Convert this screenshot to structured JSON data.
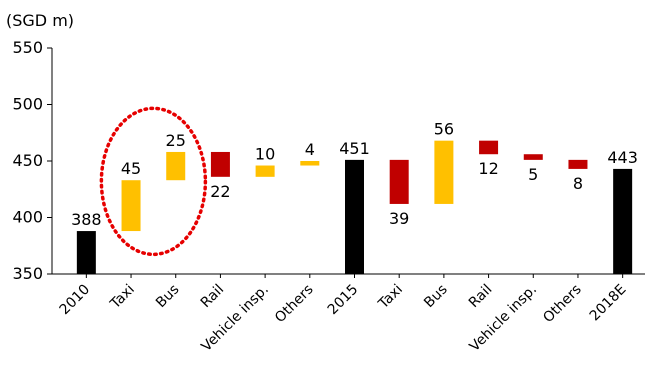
{
  "chart_data": {
    "type": "bar",
    "subtype": "waterfall",
    "unit_label": "(SGD m)",
    "yticks": [
      "350",
      "400",
      "450",
      "500",
      "550"
    ],
    "ylim": [
      350,
      550
    ],
    "grid": false,
    "legend": "none",
    "highlight": {
      "shape": "dotted-circle",
      "color": "#e60000",
      "categories": [
        "Taxi",
        "Bus"
      ],
      "segment": 1
    },
    "colors": {
      "total": "#000000",
      "increase": "#ffc000",
      "decrease": "#c00000",
      "highlight": "#e60000"
    },
    "bars": [
      {
        "category": "2010",
        "kind": "total",
        "base": 350,
        "top": 388,
        "label": "388",
        "label_pos": "above"
      },
      {
        "category": "Taxi",
        "kind": "increase",
        "base": 388,
        "top": 433,
        "label": "45",
        "label_pos": "above"
      },
      {
        "category": "Bus",
        "kind": "increase",
        "base": 433,
        "top": 458,
        "label": "25",
        "label_pos": "above"
      },
      {
        "category": "Rail",
        "kind": "decrease",
        "base": 436,
        "top": 458,
        "label": "22",
        "label_pos": "below"
      },
      {
        "category": "Vehicle insp.",
        "kind": "increase",
        "base": 436,
        "top": 446,
        "label": "10",
        "label_pos": "above"
      },
      {
        "category": "Others",
        "kind": "increase",
        "base": 446,
        "top": 450,
        "label": "4",
        "label_pos": "above"
      },
      {
        "category": "2015",
        "kind": "total",
        "base": 350,
        "top": 451,
        "label": "451",
        "label_pos": "above"
      },
      {
        "category": "Taxi",
        "kind": "decrease",
        "base": 412,
        "top": 451,
        "label": "39",
        "label_pos": "below"
      },
      {
        "category": "Bus",
        "kind": "increase",
        "base": 412,
        "top": 468,
        "label": "56",
        "label_pos": "above"
      },
      {
        "category": "Rail",
        "kind": "decrease",
        "base": 456,
        "top": 468,
        "label": "12",
        "label_pos": "below"
      },
      {
        "category": "Vehicle insp.",
        "kind": "decrease",
        "base": 451,
        "top": 456,
        "label": "5",
        "label_pos": "below"
      },
      {
        "category": "Others",
        "kind": "decrease",
        "base": 443,
        "top": 451,
        "label": "8",
        "label_pos": "below"
      },
      {
        "category": "2018E",
        "kind": "total",
        "base": 350,
        "top": 443,
        "label": "443",
        "label_pos": "above"
      }
    ]
  }
}
